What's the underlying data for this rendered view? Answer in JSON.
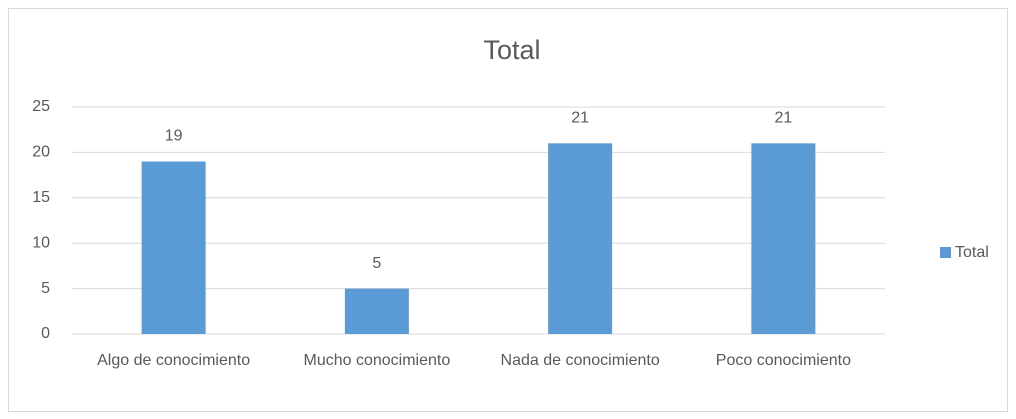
{
  "chart_data": {
    "type": "bar",
    "title": "Total",
    "categories": [
      "Algo de conocimiento",
      "Mucho conocimiento",
      "Nada de conocimiento",
      "Poco conocimiento"
    ],
    "series": [
      {
        "name": "Total",
        "color": "#5b9bd5",
        "values": [
          19,
          5,
          21,
          21
        ]
      }
    ],
    "ylim": [
      0,
      25
    ],
    "yticks": [
      0,
      5,
      10,
      15,
      20,
      25
    ],
    "grid": true,
    "legend": "right"
  }
}
